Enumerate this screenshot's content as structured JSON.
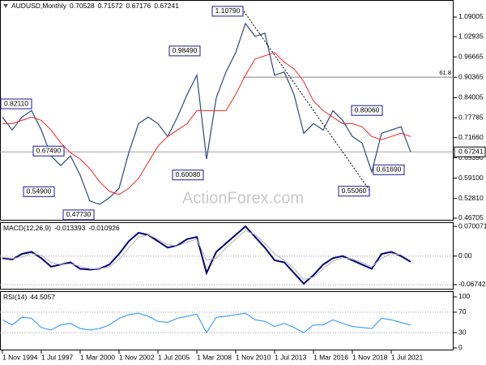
{
  "chart_data": [
    {
      "type": "line",
      "title": "AUDUSD,Monthly",
      "open": 0.70528,
      "high": 0.71572,
      "low": 0.67176,
      "series": [
        {
          "color": "#2c4a7c",
          "values": [
            0.78,
            0.74,
            0.78,
            0.8,
            0.74,
            0.66,
            0.63,
            0.66,
            0.6,
            0.52,
            0.51,
            0.53,
            0.56,
            0.67,
            0.76,
            0.78,
            0.76,
            0.72,
            0.78,
            0.85,
            0.91,
            0.65,
            0.84,
            0.92,
            0.98,
            1.07,
            1.03,
            1.04,
            0.91,
            0.92,
            0.85,
            0.73,
            0.76,
            0.74,
            0.8,
            0.77,
            0.72,
            0.7,
            0.61,
            0.73,
            0.74,
            0.75,
            0.67241
          ]
        },
        {
          "color": "#ff2020",
          "values": [
            0.76,
            0.76,
            0.77,
            0.78,
            0.77,
            0.74,
            0.7,
            0.67,
            0.65,
            0.62,
            0.58,
            0.55,
            0.54,
            0.56,
            0.59,
            0.64,
            0.69,
            0.72,
            0.74,
            0.76,
            0.8,
            0.8,
            0.8,
            0.8,
            0.85,
            0.91,
            0.96,
            0.97,
            0.98,
            0.95,
            0.93,
            0.89,
            0.83,
            0.8,
            0.78,
            0.76,
            0.76,
            0.75,
            0.72,
            0.71,
            0.72,
            0.73,
            0.72
          ]
        }
      ],
      "ylim": [
        0.4594,
        1.1428
      ],
      "yticks": [
        1.09005,
        1.02935,
        0.96665,
        0.90365,
        0.84005,
        0.77785,
        {
          "value": 0.7166,
          "label": "0.71660"
        },
        {
          "value": 0.6539,
          "label": "0.65390"
        },
        {
          "value": 0.591,
          "label": "0.59100"
        },
        {
          "value": 0.5281,
          "label": "0.52810"
        },
        0.46705
      ],
      "grid": false,
      "annotations": [
        {
          "value": 0.8211,
          "label": "0.82110"
        },
        {
          "value": 0.6749,
          "label": "0.67490"
        },
        {
          "value": 0.549,
          "label": "0.54900"
        },
        {
          "value": 0.4773,
          "label": "0.47730"
        },
        {
          "value": 0.9849,
          "label": "0.98490"
        },
        {
          "value": 0.6008,
          "label": "0.60080"
        },
        {
          "value": 1.1079,
          "label": "1.10790"
        },
        {
          "value": 0.8006,
          "label": "0.80060"
        },
        {
          "value": 0.6169,
          "label": "0.61690"
        },
        {
          "value": 0.5506,
          "label": "0.55060"
        }
      ],
      "fib": {
        "level": 0.90365,
        "label": 61.8
      },
      "watermark": "ActionForex.com"
    },
    {
      "type": "line",
      "title": "MACD(12,26,9)",
      "series": [
        {
          "color": "#00007a",
          "values": [
            -0.005,
            -0.008,
            0.005,
            0.01,
            -0.005,
            -0.025,
            -0.02,
            -0.015,
            -0.03,
            -0.032,
            -0.03,
            -0.02,
            0.005,
            0.035,
            0.055,
            0.05,
            0.035,
            0.02,
            0.025,
            0.04,
            0.045,
            -0.04,
            0.01,
            0.03,
            0.05,
            0.07,
            0.045,
            0.02,
            -0.01,
            -0.015,
            -0.04,
            -0.065,
            -0.045,
            -0.02,
            -0.005,
            0.0,
            -0.01,
            -0.02,
            -0.03,
            0.005,
            0.01,
            0.0,
            -0.013393
          ]
        },
        {
          "color": "#b4b4b4",
          "values": [
            -0.003,
            -0.006,
            -0.002,
            0.006,
            0.002,
            -0.015,
            -0.02,
            -0.018,
            -0.024,
            -0.03,
            -0.03,
            -0.025,
            -0.008,
            0.02,
            0.045,
            0.05,
            0.04,
            0.027,
            0.024,
            0.033,
            0.04,
            -0.01,
            -0.005,
            0.02,
            0.04,
            0.06,
            0.05,
            0.03,
            0.005,
            -0.01,
            -0.03,
            -0.055,
            -0.05,
            -0.03,
            -0.012,
            -0.004,
            -0.007,
            -0.015,
            -0.025,
            -0.005,
            0.006,
            0.003,
            -0.010926
          ]
        }
      ],
      "ylim": [
        -0.079,
        0.0798
      ],
      "yticks": [
        0.070071,
        {
          "value": 0,
          "label": "0.00"
        },
        -0.067423
      ],
      "grid": true
    },
    {
      "type": "line",
      "title": "RSI(14)",
      "series": [
        {
          "color": "#1e90ff",
          "values": [
            55,
            45,
            60,
            58,
            40,
            35,
            45,
            48,
            38,
            35,
            38,
            45,
            58,
            65,
            68,
            62,
            52,
            50,
            58,
            62,
            66,
            30,
            60,
            62,
            65,
            68,
            55,
            52,
            42,
            48,
            40,
            30,
            45,
            45,
            55,
            48,
            42,
            40,
            38,
            58,
            55,
            50,
            44.5057
          ]
        }
      ],
      "ylim": [
        -4.8,
        111.1
      ],
      "yticks": [
        100,
        70,
        30,
        0
      ],
      "grid": true,
      "categories": [
        "1 Nov 1994",
        null,
        null,
        null,
        "1 Jul 1997",
        null,
        null,
        null,
        "1 Mar 2000",
        null,
        null,
        null,
        "1 Nov 2002",
        null,
        null,
        null,
        "1 Jul 2005",
        null,
        null,
        null,
        "1 Mar 2008",
        null,
        null,
        null,
        "1 Nov 2010",
        null,
        null,
        null,
        "1 Jul 2013",
        null,
        null,
        null,
        "1 Mar 2016",
        null,
        null,
        null,
        "1 Nov 2018",
        null,
        null,
        null,
        "1 Jul 2021",
        null,
        null
      ]
    }
  ]
}
